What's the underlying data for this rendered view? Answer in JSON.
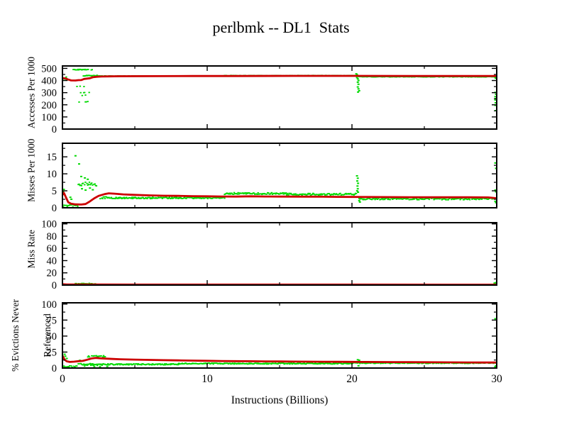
{
  "chart_data": {
    "type": "scatter",
    "title": "perlbmk -- DL1  Stats",
    "xlabel": "Instructions (Billions)",
    "xlim": [
      0,
      30
    ],
    "xticks": [
      0,
      10,
      20,
      30
    ],
    "xtick_labels": [
      "0",
      "10",
      "20",
      "30"
    ],
    "xminor": [
      5,
      15,
      25
    ],
    "grid": false,
    "legend": "none",
    "colors": {
      "samples_green": "#00d900",
      "mean_red": "#cc0000",
      "axis": "#000000",
      "background": "#ffffff"
    },
    "subplots": [
      {
        "ylabel": "Accesses Per 1000",
        "ylabel_lines": [
          "Accesses Per 1000"
        ],
        "ylim": [
          0,
          520
        ],
        "yticks": [
          0,
          100,
          200,
          300,
          400,
          500
        ],
        "ytick_labels": [
          "0",
          "100",
          "200",
          "300",
          "400",
          "500"
        ],
        "yminor": [
          50,
          150,
          250,
          350,
          450
        ],
        "red_line": [
          [
            0,
            420
          ],
          [
            0.2,
            418
          ],
          [
            0.4,
            408
          ],
          [
            0.6,
            401
          ],
          [
            0.9,
            400
          ],
          [
            1.1,
            403
          ],
          [
            1.3,
            404
          ],
          [
            1.5,
            413
          ],
          [
            1.7,
            416
          ],
          [
            1.9,
            419
          ],
          [
            2.1,
            427
          ],
          [
            2.4,
            431
          ],
          [
            2.7,
            433
          ],
          [
            3.2,
            434
          ],
          [
            4,
            435
          ],
          [
            6,
            436
          ],
          [
            9,
            437
          ],
          [
            12,
            437
          ],
          [
            16,
            438
          ],
          [
            20,
            438
          ],
          [
            24,
            437
          ],
          [
            30,
            437
          ]
        ],
        "green_bands": [
          {
            "x0": 0,
            "x1": 0.32,
            "y": 412,
            "jitter": 22,
            "density": 0.9
          },
          {
            "x0": 0.75,
            "x1": 2.05,
            "y": 490,
            "jitter": 3,
            "density": 0.85
          },
          {
            "x0": 0.95,
            "x1": 1.65,
            "y": 350,
            "jitter": 3,
            "density": 0.3
          },
          {
            "x0": 1.1,
            "x1": 1.85,
            "y": 300,
            "jitter": 3,
            "density": 0.28
          },
          {
            "x0": 1.2,
            "x1": 1.65,
            "y": 278,
            "jitter": 2,
            "density": 0.25
          },
          {
            "x0": 1.15,
            "x1": 1.75,
            "y": 225,
            "jitter": 4,
            "density": 0.3
          },
          {
            "x0": 1.45,
            "x1": 2.4,
            "y": 440,
            "jitter": 3,
            "density": 0.9
          },
          {
            "x0": 2.4,
            "x1": 11.2,
            "y": 437,
            "jitter": 2,
            "density": 1
          },
          {
            "x0": 11.2,
            "x1": 20.3,
            "y": 440,
            "jitter": 2.2,
            "density": 1
          },
          {
            "x0": 20.5,
            "x1": 30,
            "y": 431,
            "jitter": 2,
            "density": 1
          }
        ],
        "green_points": [
          [
            20.3,
            455
          ],
          [
            20.35,
            448
          ],
          [
            20.35,
            425
          ],
          [
            20.4,
            414
          ],
          [
            20.45,
            401
          ],
          [
            20.4,
            386
          ],
          [
            20.45,
            369
          ],
          [
            20.4,
            347
          ],
          [
            20.45,
            331
          ],
          [
            20.5,
            316
          ],
          [
            20.42,
            305
          ],
          [
            29.88,
            429
          ],
          [
            29.93,
            419
          ],
          [
            29.9,
            302
          ],
          [
            29.95,
            287
          ],
          [
            29.9,
            267
          ],
          [
            29.94,
            251
          ],
          [
            29.9,
            240
          ],
          [
            29.92,
            216
          ],
          [
            29.9,
            196
          ],
          [
            29.93,
            152
          ]
        ]
      },
      {
        "ylabel": "Misses Per 1000",
        "ylabel_lines": [
          "Misses Per 1000"
        ],
        "ylim": [
          0,
          19
        ],
        "yticks": [
          0,
          5,
          10,
          15
        ],
        "ytick_labels": [
          "0",
          "5",
          "10",
          "15"
        ],
        "yminor": [
          2.5,
          7.5,
          12.5,
          17.5
        ],
        "red_line": [
          [
            0,
            3.8
          ],
          [
            0.1,
            4.4
          ],
          [
            0.25,
            3.0
          ],
          [
            0.4,
            1.6
          ],
          [
            0.6,
            1.2
          ],
          [
            0.9,
            1.0
          ],
          [
            1.3,
            0.95
          ],
          [
            1.6,
            1.1
          ],
          [
            1.9,
            1.9
          ],
          [
            2.2,
            2.8
          ],
          [
            2.5,
            3.5
          ],
          [
            2.9,
            4.0
          ],
          [
            3.2,
            4.25
          ],
          [
            3.6,
            4.15
          ],
          [
            4.2,
            3.95
          ],
          [
            5,
            3.8
          ],
          [
            6,
            3.65
          ],
          [
            7,
            3.55
          ],
          [
            8,
            3.5
          ],
          [
            9,
            3.42
          ],
          [
            10,
            3.38
          ],
          [
            11,
            3.33
          ],
          [
            12,
            3.3
          ],
          [
            13,
            3.38
          ],
          [
            14,
            3.32
          ],
          [
            15,
            3.3
          ],
          [
            17,
            3.28
          ],
          [
            18,
            3.25
          ],
          [
            19,
            3.22
          ],
          [
            20,
            3.2
          ],
          [
            21,
            3.18
          ],
          [
            22,
            3.15
          ],
          [
            24,
            3.12
          ],
          [
            26,
            3.1
          ],
          [
            28,
            3.1
          ],
          [
            29.4,
            3.05
          ],
          [
            29.8,
            2.9
          ],
          [
            30,
            2.8
          ]
        ],
        "green_bands": [
          {
            "x0": 0,
            "x1": 1.05,
            "y": 0.55,
            "jitter": 0.35,
            "density": 0.9
          },
          {
            "x0": 1.1,
            "x1": 2.35,
            "y": 7.0,
            "jitter": 0.55,
            "density": 0.95
          },
          {
            "x0": 2.5,
            "x1": 3.1,
            "y": 2.95,
            "jitter": 0.3,
            "density": 0.9
          },
          {
            "x0": 3.1,
            "x1": 11.2,
            "y": 2.9,
            "jitter": 0.22,
            "density": 1
          },
          {
            "x0": 11.2,
            "x1": 15.5,
            "y": 4.2,
            "jitter": 0.28,
            "density": 1
          },
          {
            "x0": 15.5,
            "x1": 20.3,
            "y": 4.0,
            "jitter": 0.28,
            "density": 1
          },
          {
            "x0": 20.5,
            "x1": 29.9,
            "y": 2.65,
            "jitter": 0.3,
            "density": 1
          }
        ],
        "green_points": [
          [
            0.05,
            4.8
          ],
          [
            0.1,
            5.4
          ],
          [
            0.9,
            15.3
          ],
          [
            1.15,
            12.9
          ],
          [
            1.3,
            9.2
          ],
          [
            1.55,
            8.8
          ],
          [
            1.75,
            8.4
          ],
          [
            1.35,
            5.6
          ],
          [
            1.6,
            5.2
          ],
          [
            1.9,
            5.8
          ],
          [
            2.1,
            5.3
          ],
          [
            0.55,
            3.1
          ],
          [
            0.62,
            2.5
          ],
          [
            20.35,
            9.4
          ],
          [
            20.4,
            8.7
          ],
          [
            20.37,
            7.9
          ],
          [
            20.42,
            7.2
          ],
          [
            20.38,
            6.4
          ],
          [
            20.4,
            5.6
          ],
          [
            20.36,
            5.0
          ],
          [
            20.42,
            4.6
          ],
          [
            20.5,
            2.1
          ],
          [
            20.55,
            1.7
          ],
          [
            29.9,
            13.2
          ],
          [
            29.95,
            11.6
          ],
          [
            29.9,
            5.2
          ],
          [
            29.95,
            4.7
          ],
          [
            29.9,
            1.9
          ],
          [
            29.95,
            1.5
          ]
        ]
      },
      {
        "ylabel": "Miss Rate",
        "ylabel_lines": [
          "Miss Rate"
        ],
        "ylim": [
          0,
          102
        ],
        "yticks": [
          0,
          20,
          40,
          60,
          80,
          100
        ],
        "ytick_labels": [
          "0",
          "20",
          "40",
          "60",
          "80",
          "100"
        ],
        "yminor": [
          10,
          30,
          50,
          70,
          90
        ],
        "red_line": [
          [
            0,
            1.4
          ],
          [
            0.3,
            1.1
          ],
          [
            0.8,
            0.9
          ],
          [
            2,
            0.9
          ],
          [
            5,
            0.85
          ],
          [
            10,
            0.8
          ],
          [
            20,
            0.8
          ],
          [
            30,
            0.75
          ]
        ],
        "green_bands": [
          {
            "x0": 0,
            "x1": 0.9,
            "y": 0.4,
            "jitter": 0.3,
            "density": 0.8
          },
          {
            "x0": 0.9,
            "x1": 2.3,
            "y": 2.1,
            "jitter": 0.9,
            "density": 0.9
          },
          {
            "x0": 2.4,
            "x1": 30,
            "y": 0.45,
            "jitter": 0.3,
            "density": 1
          }
        ],
        "green_points": [
          [
            29.85,
            3.2
          ],
          [
            29.9,
            2.5
          ],
          [
            29.95,
            4.0
          ]
        ]
      },
      {
        "ylabel": "% Evictions Never Referenced",
        "ylabel_lines": [
          "% Evictions Never",
          "Referenced"
        ],
        "ylim": [
          0,
          102
        ],
        "yticks": [
          0,
          25,
          50,
          75,
          100
        ],
        "ytick_labels": [
          "0",
          "25",
          "50",
          "75",
          "100"
        ],
        "yminor": [
          12.5,
          37.5,
          62.5,
          87.5
        ],
        "red_line": [
          [
            0,
            19.5
          ],
          [
            0.15,
            13
          ],
          [
            0.3,
            10.5
          ],
          [
            0.5,
            9.5
          ],
          [
            0.8,
            10
          ],
          [
            1.1,
            10.8
          ],
          [
            1.4,
            11.2
          ],
          [
            1.7,
            13
          ],
          [
            2.0,
            15
          ],
          [
            2.3,
            15.8
          ],
          [
            2.6,
            15.3
          ],
          [
            3.0,
            14.8
          ],
          [
            3.5,
            14.2
          ],
          [
            4,
            13.8
          ],
          [
            5,
            13.2
          ],
          [
            6,
            12.8
          ],
          [
            7,
            12.3
          ],
          [
            8,
            12
          ],
          [
            9,
            11.6
          ],
          [
            10,
            11.3
          ],
          [
            11,
            11
          ],
          [
            12,
            10.8
          ],
          [
            13,
            10.6
          ],
          [
            14,
            10.4
          ],
          [
            15,
            10.3
          ],
          [
            16,
            10.1
          ],
          [
            17,
            10
          ],
          [
            18,
            9.9
          ],
          [
            19,
            9.8
          ],
          [
            20,
            9.7
          ],
          [
            21,
            9.5
          ],
          [
            22,
            9.4
          ],
          [
            23,
            9.3
          ],
          [
            24,
            9.2
          ],
          [
            25,
            9.1
          ],
          [
            26,
            9
          ],
          [
            27,
            8.9
          ],
          [
            28,
            8.8
          ],
          [
            29,
            8.7
          ],
          [
            30,
            8.6
          ]
        ],
        "green_bands": [
          {
            "x0": 0,
            "x1": 1.0,
            "y": 2.5,
            "jitter": 1.8,
            "density": 0.85
          },
          {
            "x0": 1.1,
            "x1": 2.9,
            "y": 5.0,
            "jitter": 2.2,
            "density": 0.5
          },
          {
            "x0": 1.7,
            "x1": 2.95,
            "y": 18.3,
            "jitter": 1.2,
            "density": 0.9
          },
          {
            "x0": 1.5,
            "x1": 8,
            "y": 5.8,
            "jitter": 0.9,
            "density": 1
          },
          {
            "x0": 8,
            "x1": 20,
            "y": 7.0,
            "jitter": 0.8,
            "density": 1
          },
          {
            "x0": 20,
            "x1": 30,
            "y": 7.8,
            "jitter": 0.7,
            "density": 1
          }
        ],
        "green_points": [
          [
            0.15,
            21.5
          ],
          [
            0.2,
            18.5
          ],
          [
            0.3,
            15
          ],
          [
            1.2,
            12
          ],
          [
            2.2,
            2.5
          ],
          [
            2.6,
            2.0
          ],
          [
            3.1,
            2.6
          ],
          [
            20.4,
            13
          ],
          [
            20.5,
            12.2
          ],
          [
            20.45,
            3.5
          ],
          [
            29.9,
            77
          ],
          [
            29.95,
            3.5
          ],
          [
            29.9,
            2.2
          ]
        ]
      }
    ]
  }
}
